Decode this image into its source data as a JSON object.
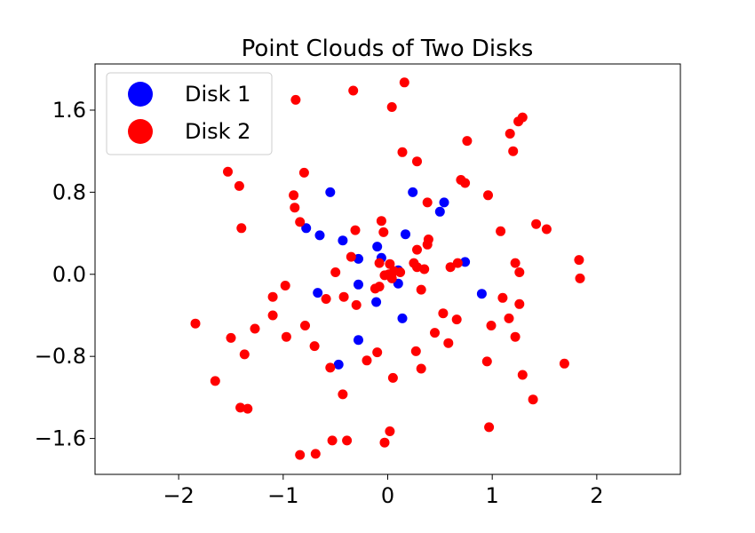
{
  "chart_data": {
    "type": "scatter",
    "title": "Point Clouds of Two Disks",
    "xlabel": "",
    "ylabel": "",
    "xlim": [
      -2.8,
      2.8
    ],
    "ylim": [
      -1.95,
      2.05
    ],
    "xticks": [
      {
        "value": -2,
        "label": "−2"
      },
      {
        "value": -1,
        "label": "−1"
      },
      {
        "value": 0,
        "label": "0"
      },
      {
        "value": 1,
        "label": "1"
      },
      {
        "value": 2,
        "label": "2"
      }
    ],
    "yticks": [
      {
        "value": 1.6,
        "label": "1.6"
      },
      {
        "value": 0.8,
        "label": "0.8"
      },
      {
        "value": 0.0,
        "label": "0.0"
      },
      {
        "value": -0.8,
        "label": "−0.8"
      },
      {
        "value": -1.6,
        "label": "−1.6"
      }
    ],
    "grid": false,
    "legend": {
      "placement": "top-left"
    },
    "series": [
      {
        "name": "Disk 1",
        "color": "#0000ff",
        "points": [
          [
            -0.55,
            0.8
          ],
          [
            0.24,
            0.8
          ],
          [
            0.54,
            0.7
          ],
          [
            0.5,
            0.61
          ],
          [
            -0.78,
            0.45
          ],
          [
            -0.65,
            0.38
          ],
          [
            -0.43,
            0.33
          ],
          [
            0.17,
            0.39
          ],
          [
            -0.1,
            0.27
          ],
          [
            -0.28,
            0.15
          ],
          [
            -0.06,
            0.16
          ],
          [
            0.74,
            0.12
          ],
          [
            0.1,
            0.04
          ],
          [
            -0.28,
            -0.1
          ],
          [
            0.1,
            -0.09
          ],
          [
            -0.67,
            -0.18
          ],
          [
            -0.11,
            -0.27
          ],
          [
            0.9,
            -0.19
          ],
          [
            0.14,
            -0.43
          ],
          [
            -0.28,
            -0.64
          ],
          [
            -0.47,
            -0.88
          ]
        ]
      },
      {
        "name": "Disk 2",
        "color": "#ff0000",
        "points": [
          [
            0.16,
            1.87
          ],
          [
            -0.33,
            1.79
          ],
          [
            -0.88,
            1.7
          ],
          [
            0.04,
            1.63
          ],
          [
            1.29,
            1.53
          ],
          [
            1.25,
            1.49
          ],
          [
            1.17,
            1.37
          ],
          [
            0.76,
            1.3
          ],
          [
            1.2,
            1.2
          ],
          [
            0.14,
            1.19
          ],
          [
            0.28,
            1.1
          ],
          [
            -1.53,
            1.0
          ],
          [
            -0.8,
            0.99
          ],
          [
            0.7,
            0.92
          ],
          [
            0.74,
            0.89
          ],
          [
            -1.42,
            0.86
          ],
          [
            -0.9,
            0.77
          ],
          [
            0.96,
            0.77
          ],
          [
            0.38,
            0.7
          ],
          [
            -0.89,
            0.65
          ],
          [
            -0.84,
            0.51
          ],
          [
            -0.06,
            0.52
          ],
          [
            1.42,
            0.49
          ],
          [
            -1.4,
            0.45
          ],
          [
            1.52,
            0.44
          ],
          [
            -0.31,
            0.43
          ],
          [
            -0.04,
            0.41
          ],
          [
            1.08,
            0.42
          ],
          [
            0.39,
            0.34
          ],
          [
            0.38,
            0.29
          ],
          [
            0.28,
            0.24
          ],
          [
            -0.35,
            0.17
          ],
          [
            1.83,
            0.14
          ],
          [
            1.22,
            0.11
          ],
          [
            0.67,
            0.11
          ],
          [
            0.25,
            0.11
          ],
          [
            0.6,
            0.07
          ],
          [
            0.02,
            0.1
          ],
          [
            -0.08,
            0.11
          ],
          [
            0.28,
            0.07
          ],
          [
            0.35,
            0.05
          ],
          [
            0.06,
            0.03
          ],
          [
            -0.5,
            0.02
          ],
          [
            1.26,
            0.02
          ],
          [
            0.12,
            0.02
          ],
          [
            -0.03,
            -0.01
          ],
          [
            0.01,
            0.0
          ],
          [
            0.04,
            -0.04
          ],
          [
            1.84,
            -0.04
          ],
          [
            -0.08,
            -0.12
          ],
          [
            0.32,
            -0.15
          ],
          [
            -0.12,
            -0.14
          ],
          [
            -1.1,
            -0.22
          ],
          [
            -0.98,
            -0.11
          ],
          [
            -0.59,
            -0.24
          ],
          [
            -0.42,
            -0.22
          ],
          [
            1.1,
            -0.23
          ],
          [
            -0.3,
            -0.3
          ],
          [
            1.26,
            -0.29
          ],
          [
            -1.1,
            -0.4
          ],
          [
            0.53,
            -0.38
          ],
          [
            0.66,
            -0.44
          ],
          [
            1.16,
            -0.43
          ],
          [
            -1.84,
            -0.48
          ],
          [
            0.99,
            -0.5
          ],
          [
            -0.79,
            -0.5
          ],
          [
            -1.27,
            -0.53
          ],
          [
            0.45,
            -0.57
          ],
          [
            -1.5,
            -0.62
          ],
          [
            -0.97,
            -0.61
          ],
          [
            1.22,
            -0.61
          ],
          [
            0.58,
            -0.67
          ],
          [
            -0.7,
            -0.7
          ],
          [
            -1.37,
            -0.78
          ],
          [
            -0.1,
            -0.76
          ],
          [
            0.27,
            -0.75
          ],
          [
            -0.2,
            -0.84
          ],
          [
            0.95,
            -0.85
          ],
          [
            1.69,
            -0.87
          ],
          [
            -0.55,
            -0.91
          ],
          [
            0.32,
            -0.92
          ],
          [
            1.29,
            -0.98
          ],
          [
            0.05,
            -1.01
          ],
          [
            -1.65,
            -1.04
          ],
          [
            -0.43,
            -1.17
          ],
          [
            1.39,
            -1.22
          ],
          [
            -1.41,
            -1.3
          ],
          [
            -1.34,
            -1.31
          ],
          [
            0.97,
            -1.49
          ],
          [
            0.02,
            -1.53
          ],
          [
            -0.53,
            -1.62
          ],
          [
            -0.39,
            -1.62
          ],
          [
            -0.03,
            -1.64
          ],
          [
            -0.84,
            -1.76
          ],
          [
            -0.69,
            -1.75
          ]
        ]
      }
    ]
  }
}
